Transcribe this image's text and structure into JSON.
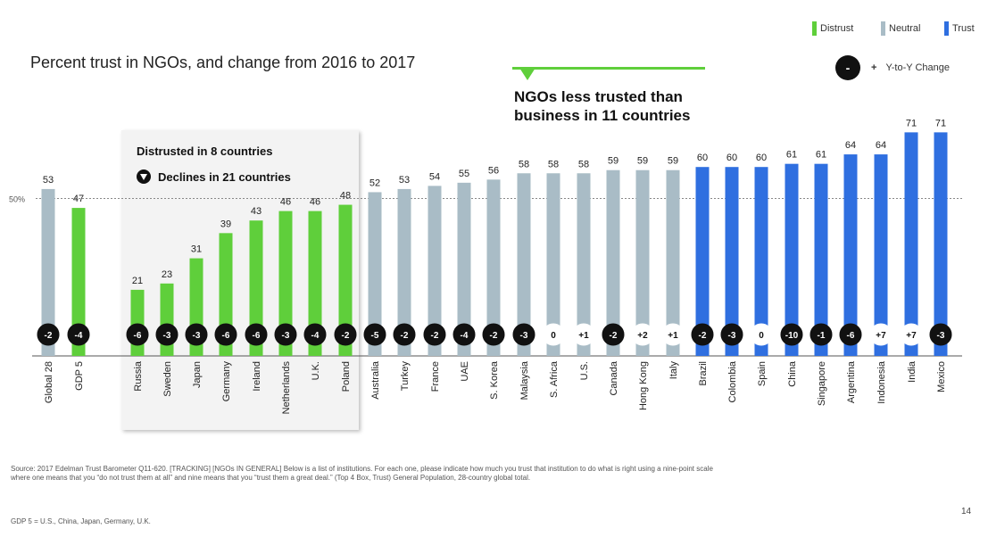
{
  "title": "Percent trust in NGOs, and change from 2016 to 2017",
  "legend": {
    "distrust": "Distrust",
    "neutral": "Neutral",
    "trust": "Trust",
    "yoy_symbol": "-",
    "yoy_plus": "+",
    "yoy_label": "Y-to-Y Change"
  },
  "callout": {
    "line1": "NGOs less trusted than",
    "line2": "business in 11 countries"
  },
  "box": {
    "distrusted": "Distrusted in 8 countries",
    "declines": "Declines in 21 countries"
  },
  "colors": {
    "distrust": "#5fcf3b",
    "neutral": "#a9bcc6",
    "trust": "#2f6fe0",
    "dot": "#111111"
  },
  "chart_data": {
    "type": "bar",
    "ylim": [
      0,
      75
    ],
    "reference_line": {
      "value": 50,
      "label": "50%"
    },
    "categories": [
      "Global 28",
      "GDP 5",
      "Russia",
      "Sweden",
      "Japan",
      "Germany",
      "Ireland",
      "Netherlands",
      "U.K.",
      "Poland",
      "Australia",
      "Turkey",
      "France",
      "UAE",
      "S. Korea",
      "Malaysia",
      "S. Africa",
      "U.S.",
      "Canada",
      "Hong Kong",
      "Italy",
      "Brazil",
      "Colombia",
      "Spain",
      "China",
      "Singapore",
      "Argentina",
      "Indonesia",
      "India",
      "Mexico"
    ],
    "values": [
      53,
      47,
      21,
      23,
      31,
      39,
      43,
      46,
      46,
      48,
      52,
      53,
      54,
      55,
      56,
      58,
      58,
      58,
      59,
      59,
      59,
      60,
      60,
      60,
      61,
      61,
      64,
      64,
      71,
      71
    ],
    "categories_class": [
      "neutral",
      "distrust",
      "distrust",
      "distrust",
      "distrust",
      "distrust",
      "distrust",
      "distrust",
      "distrust",
      "distrust",
      "neutral",
      "neutral",
      "neutral",
      "neutral",
      "neutral",
      "neutral",
      "neutral",
      "neutral",
      "neutral",
      "neutral",
      "neutral",
      "trust",
      "trust",
      "trust",
      "trust",
      "trust",
      "trust",
      "trust",
      "trust",
      "trust"
    ],
    "yoy_change": [
      "-2",
      "-4",
      "-6",
      "-3",
      "-3",
      "-6",
      "-6",
      "-3",
      "-4",
      "-2",
      "-5",
      "-2",
      "-2",
      "-4",
      "-2",
      "-3",
      "0",
      "+1",
      "-2",
      "+2",
      "+1",
      "-2",
      "-3",
      "0",
      "-10",
      "-1",
      "-6",
      "+7",
      "+7",
      "-3"
    ]
  },
  "footnote": "Source: 2017 Edelman Trust Barometer Q11-620. [TRACKING] [NGOs IN GENERAL] Below is a list of institutions. For each one, please indicate how much you trust that institution to do what is right using a nine-point scale where one means that you “do not trust them at all” and nine means that you “trust them a great deal.” (Top 4 Box, Trust) General Population, 28-country global total.",
  "footnote2": "GDP 5 = U.S., China, Japan, Germany, U.K.",
  "page_number": "14"
}
